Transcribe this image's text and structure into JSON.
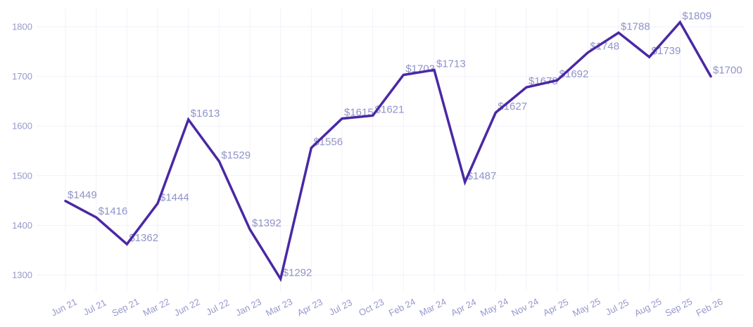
{
  "chart_data": {
    "type": "line",
    "title": "",
    "xlabel": "",
    "ylabel": "",
    "categories": [
      "Jun 21",
      "Jul 21",
      "Sep 21",
      "Mar 22",
      "Jun 22",
      "Jul 22",
      "Jan 23",
      "Mar 23",
      "Apr 23",
      "Jul 23",
      "Oct 23",
      "Feb 24",
      "Mar 24",
      "Apr 24",
      "May 24",
      "Nov 24",
      "Apr 25",
      "May 25",
      "Jul 25",
      "Aug 25",
      "Sep 25",
      "Feb 26"
    ],
    "values": [
      1449,
      1416,
      1362,
      1444,
      1613,
      1529,
      1392,
      1292,
      1556,
      1615,
      1621,
      1703,
      1713,
      1487,
      1627,
      1678,
      1692,
      1748,
      1788,
      1739,
      1809,
      1700
    ],
    "point_labels": [
      "$1449",
      "$1416",
      "$1362",
      "$1444",
      "$1613",
      "$1529",
      "$1392",
      "$1292",
      "$1556",
      "$1615",
      "$1621",
      "$1703",
      "$1713",
      "$1487",
      "$1627",
      "$1678",
      "$1692",
      "$1748",
      "$1788",
      "$1739",
      "$1809",
      "$1700"
    ],
    "y_ticks": [
      1300,
      1400,
      1500,
      1600,
      1700,
      1800
    ],
    "ylim": [
      1266,
      1837
    ],
    "grid": true,
    "legend": false,
    "colors": {
      "line": "#4a28a4",
      "point_label": "#8f93c8",
      "axis_tick": "#9598cc",
      "grid": "#f2f1fa",
      "background": "#ffffff"
    }
  }
}
